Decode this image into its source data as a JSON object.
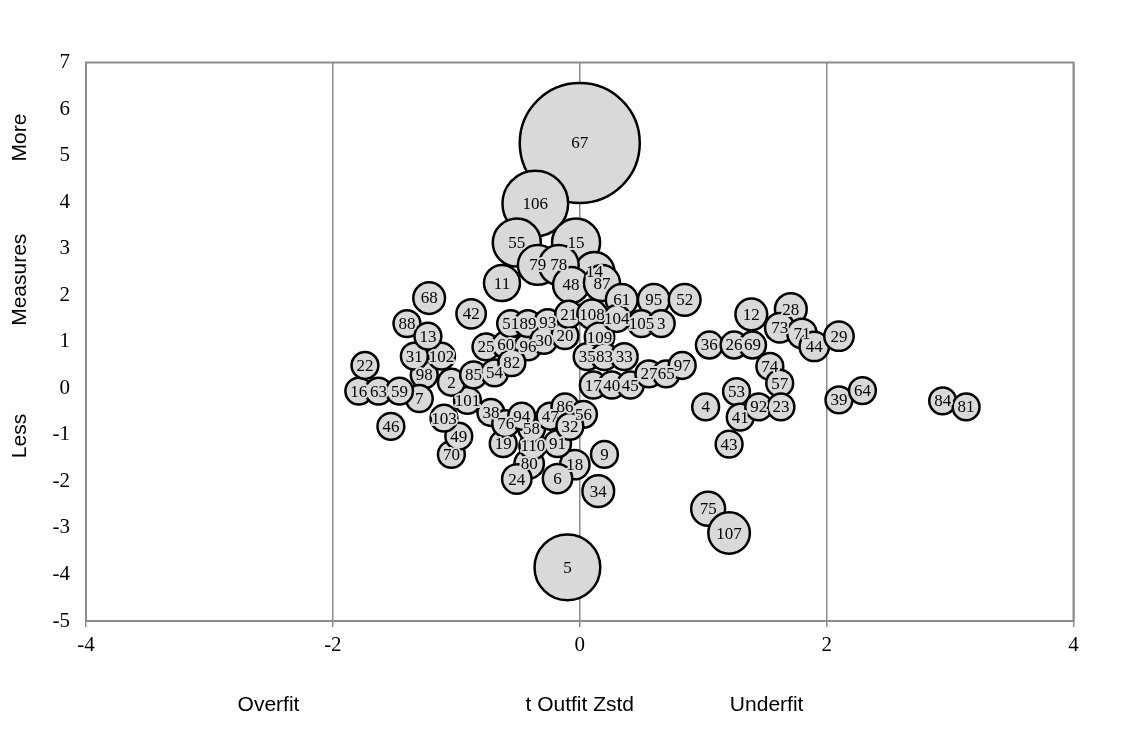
{
  "chart_data": {
    "type": "bubble",
    "xlabel": "t Outfit Zstd",
    "ylabel": "Measures",
    "annotations": [
      "Overfit",
      "Underfit",
      "More",
      "Less",
      {
        "text": "67",
        "x": 0,
        "y": 5.27
      },
      {
        "text": "106",
        "x": -0.36,
        "y": 3.97
      },
      {
        "text": "5",
        "x": -0.1,
        "y": -3.85
      },
      {
        "text": "55",
        "x": -0.51,
        "y": 3.13
      },
      {
        "text": "15",
        "x": -0.03,
        "y": 3.13
      },
      {
        "text": "14",
        "x": 0.12,
        "y": 2.5
      },
      {
        "text": "79",
        "x": -0.34,
        "y": 2.65
      },
      {
        "text": "78",
        "x": -0.17,
        "y": 2.65
      },
      {
        "text": "11",
        "x": -0.63,
        "y": 2.26
      },
      {
        "text": "48",
        "x": -0.07,
        "y": 2.22
      },
      {
        "text": "87",
        "x": 0.18,
        "y": 2.26
      },
      {
        "text": "68",
        "x": -1.22,
        "y": 1.94
      },
      {
        "text": "61",
        "x": 0.34,
        "y": 1.9
      },
      {
        "text": "95",
        "x": 0.6,
        "y": 1.9
      },
      {
        "text": "52",
        "x": 0.85,
        "y": 1.9
      },
      {
        "text": "42",
        "x": -0.88,
        "y": 1.6
      },
      {
        "text": "12",
        "x": 1.39,
        "y": 1.59
      },
      {
        "text": "28",
        "x": 1.71,
        "y": 1.7
      },
      {
        "text": "73",
        "x": 1.62,
        "y": 1.3
      },
      {
        "text": "71",
        "x": 1.8,
        "y": 1.18
      },
      {
        "text": "44",
        "x": 1.9,
        "y": 0.9
      },
      {
        "text": "29",
        "x": 2.1,
        "y": 1.12
      },
      {
        "text": "36",
        "x": 1.05,
        "y": 0.93
      },
      {
        "text": "26",
        "x": 1.25,
        "y": 0.93
      },
      {
        "text": "69",
        "x": 1.4,
        "y": 0.93
      },
      {
        "text": "74",
        "x": 1.54,
        "y": 0.47
      },
      {
        "text": "57",
        "x": 1.62,
        "y": 0.11
      },
      {
        "text": "53",
        "x": 1.27,
        "y": -0.07
      },
      {
        "text": "4",
        "x": 1.02,
        "y": -0.4
      },
      {
        "text": "41",
        "x": 1.3,
        "y": -0.62
      },
      {
        "text": "92",
        "x": 1.45,
        "y": -0.4
      },
      {
        "text": "23",
        "x": 1.63,
        "y": -0.4
      },
      {
        "text": "43",
        "x": 1.21,
        "y": -1.2
      },
      {
        "text": "39",
        "x": 2.1,
        "y": -0.25
      },
      {
        "text": "64",
        "x": 2.29,
        "y": -0.05
      },
      {
        "text": "84",
        "x": 2.94,
        "y": -0.27
      },
      {
        "text": "81",
        "x": 3.13,
        "y": -0.4
      },
      {
        "text": "75",
        "x": 1.04,
        "y": -2.59
      },
      {
        "text": "107",
        "x": 1.21,
        "y": -3.11
      },
      {
        "text": "34",
        "x": 0.15,
        "y": -2.21
      },
      {
        "text": "9",
        "x": 0.2,
        "y": -1.42
      },
      {
        "text": "18",
        "x": -0.04,
        "y": -1.64
      },
      {
        "text": "6",
        "x": -0.18,
        "y": -1.94
      },
      {
        "text": "80",
        "x": -0.41,
        "y": -1.62
      },
      {
        "text": "24",
        "x": -0.51,
        "y": -1.95
      },
      {
        "text": "70",
        "x": -1.04,
        "y": -1.42
      },
      {
        "text": "49",
        "x": -0.98,
        "y": -1.03
      },
      {
        "text": "19",
        "x": -0.62,
        "y": -1.19
      },
      {
        "text": "110",
        "x": -0.38,
        "y": -1.24
      },
      {
        "text": "91",
        "x": -0.18,
        "y": -1.19
      },
      {
        "text": "38",
        "x": -0.72,
        "y": -0.52
      },
      {
        "text": "76",
        "x": -0.6,
        "y": -0.76
      },
      {
        "text": "58",
        "x": -0.39,
        "y": -0.86
      },
      {
        "text": "94",
        "x": -0.47,
        "y": -0.6
      },
      {
        "text": "47",
        "x": -0.24,
        "y": -0.6
      },
      {
        "text": "86",
        "x": -0.12,
        "y": -0.4
      },
      {
        "text": "56",
        "x": 0.03,
        "y": -0.56
      },
      {
        "text": "32",
        "x": -0.08,
        "y": -0.82
      },
      {
        "text": "101",
        "x": -0.91,
        "y": -0.26
      },
      {
        "text": "103",
        "x": -1.1,
        "y": -0.64
      },
      {
        "text": "2",
        "x": -1.04,
        "y": 0.13
      },
      {
        "text": "85",
        "x": -0.86,
        "y": 0.29
      },
      {
        "text": "54",
        "x": -0.69,
        "y": 0.33
      },
      {
        "text": "98",
        "x": -1.26,
        "y": 0.29
      },
      {
        "text": "7",
        "x": -1.3,
        "y": -0.22
      },
      {
        "text": "16",
        "x": -1.79,
        "y": -0.06
      },
      {
        "text": "63",
        "x": -1.63,
        "y": -0.06
      },
      {
        "text": "59",
        "x": -1.46,
        "y": -0.06
      },
      {
        "text": "46",
        "x": -1.53,
        "y": -0.82
      },
      {
        "text": "22",
        "x": -1.74,
        "y": 0.49
      },
      {
        "text": "31",
        "x": -1.34,
        "y": 0.69
      },
      {
        "text": "102",
        "x": -1.12,
        "y": 0.69
      },
      {
        "text": "88",
        "x": -1.4,
        "y": 1.39
      },
      {
        "text": "13",
        "x": -1.23,
        "y": 1.12
      },
      {
        "text": "25",
        "x": -0.76,
        "y": 0.89
      },
      {
        "text": "60",
        "x": -0.6,
        "y": 0.93
      },
      {
        "text": "96",
        "x": -0.42,
        "y": 0.89
      },
      {
        "text": "82",
        "x": -0.55,
        "y": 0.55
      },
      {
        "text": "51",
        "x": -0.56,
        "y": 1.39
      },
      {
        "text": "89",
        "x": -0.42,
        "y": 1.39
      },
      {
        "text": "93",
        "x": -0.26,
        "y": 1.41
      },
      {
        "text": "30",
        "x": -0.29,
        "y": 1.03
      },
      {
        "text": "20",
        "x": -0.12,
        "y": 1.13
      },
      {
        "text": "21",
        "x": -0.09,
        "y": 1.59
      },
      {
        "text": "108",
        "x": 0.1,
        "y": 1.59
      },
      {
        "text": "109",
        "x": 0.16,
        "y": 1.1
      },
      {
        "text": "35",
        "x": 0.06,
        "y": 0.68
      },
      {
        "text": "83",
        "x": 0.2,
        "y": 0.68
      },
      {
        "text": "33",
        "x": 0.36,
        "y": 0.68
      },
      {
        "text": "104",
        "x": 0.3,
        "y": 1.5
      },
      {
        "text": "105",
        "x": 0.5,
        "y": 1.39
      },
      {
        "text": "3",
        "x": 0.66,
        "y": 1.39
      },
      {
        "text": "17",
        "x": 0.11,
        "y": 0.07
      },
      {
        "text": "40",
        "x": 0.26,
        "y": 0.07
      },
      {
        "text": "45",
        "x": 0.41,
        "y": 0.07
      },
      {
        "text": "27",
        "x": 0.56,
        "y": 0.31
      },
      {
        "text": "65",
        "x": 0.7,
        "y": 0.31
      },
      {
        "text": "97",
        "x": 0.83,
        "y": 0.49
      }
    ],
    "color": "#d9d9d9",
    "grid": "x",
    "xlim": [
      -4,
      4
    ],
    "xticks": [
      -4,
      -2,
      0,
      2,
      4
    ],
    "ylim": [
      -5,
      7
    ],
    "yticks": [
      -5,
      -4,
      -3,
      -2,
      -1,
      0,
      1,
      2,
      3,
      4,
      5,
      6,
      7
    ],
    "x": [
      0,
      -0.36,
      -0.1,
      -0.51,
      -0.03,
      0.12,
      -0.34,
      -0.17,
      -0.63,
      -0.07,
      0.18,
      -1.22,
      0.34,
      0.6,
      0.85,
      -0.88,
      1.39,
      1.71,
      1.62,
      1.8,
      1.9,
      2.1,
      1.05,
      1.25,
      1.4,
      1.54,
      1.62,
      1.27,
      1.02,
      1.3,
      1.45,
      1.63,
      1.21,
      2.1,
      2.29,
      2.94,
      3.13,
      1.04,
      1.21,
      0.15,
      0.2,
      -0.04,
      -0.18,
      -0.41,
      -0.51,
      -1.04,
      -0.98,
      -0.62,
      -0.38,
      -0.18,
      -0.72,
      -0.6,
      -0.39,
      -0.47,
      -0.24,
      -0.12,
      0.03,
      -0.08,
      -0.91,
      -1.1,
      -1.04,
      -0.86,
      -0.69,
      -1.26,
      -1.3,
      -1.79,
      -1.63,
      -1.46,
      -1.53,
      -1.74,
      -1.34,
      -1.12,
      -1.4,
      -1.23,
      -0.76,
      -0.6,
      -0.42,
      -0.55,
      -0.56,
      -0.42,
      -0.26,
      -0.29,
      -0.12,
      -0.09,
      0.1,
      0.16,
      0.06,
      0.2,
      0.36,
      0.3,
      0.5,
      0.66,
      0.11,
      0.26,
      0.41,
      0.56,
      0.7,
      0.83
    ],
    "values": [
      5.27,
      3.97,
      -3.85,
      3.13,
      3.13,
      2.5,
      2.65,
      2.65,
      2.26,
      2.22,
      2.26,
      1.94,
      1.9,
      1.9,
      1.9,
      1.6,
      1.59,
      1.7,
      1.3,
      1.18,
      0.9,
      1.12,
      0.93,
      0.93,
      0.93,
      0.47,
      0.11,
      -0.07,
      -0.4,
      -0.62,
      -0.4,
      -0.4,
      -1.2,
      -0.25,
      -0.05,
      -0.27,
      -0.4,
      -2.59,
      -3.11,
      -2.21,
      -1.42,
      -1.64,
      -1.94,
      -1.62,
      -1.95,
      -1.42,
      -1.03,
      -1.19,
      -1.24,
      -1.19,
      -0.52,
      -0.76,
      -0.86,
      -0.6,
      -0.6,
      -0.4,
      -0.56,
      -0.82,
      -0.26,
      -0.64,
      0.13,
      0.29,
      0.33,
      0.29,
      -0.22,
      -0.06,
      -0.06,
      -0.06,
      -0.82,
      0.49,
      0.69,
      0.69,
      1.39,
      1.12,
      0.89,
      0.93,
      0.89,
      0.55,
      1.39,
      1.39,
      1.41,
      1.03,
      1.13,
      1.59,
      1.59,
      1.1,
      0.68,
      0.68,
      0.68,
      1.5,
      1.39,
      1.39,
      0.07,
      0.07,
      0.07,
      0.31,
      0.31,
      0.49
    ],
    "sizes": [
      1,
      0.3,
      0.3,
      0.16,
      0.16,
      0.11,
      0.11,
      0.11,
      0.09,
      0.09,
      0.09,
      0.07,
      0.07,
      0.07,
      0.07,
      0.06,
      0.07,
      0.07,
      0.06,
      0.06,
      0.06,
      0.06,
      0.05,
      0.05,
      0.05,
      0.05,
      0.05,
      0.05,
      0.05,
      0.05,
      0.05,
      0.05,
      0.05,
      0.05,
      0.05,
      0.05,
      0.05,
      0.08,
      0.12,
      0.07,
      0.05,
      0.06,
      0.06,
      0.06,
      0.06,
      0.05,
      0.05,
      0.05,
      0.05,
      0.05,
      0.05,
      0.05,
      0.05,
      0.05,
      0.05,
      0.05,
      0.05,
      0.05,
      0.05,
      0.05,
      0.05,
      0.05,
      0.05,
      0.05,
      0.05,
      0.05,
      0.05,
      0.05,
      0.05,
      0.05,
      0.05,
      0.05,
      0.05,
      0.05,
      0.05,
      0.05,
      0.05,
      0.05,
      0.05,
      0.05,
      0.05,
      0.05,
      0.05,
      0.05,
      0.06,
      0.06,
      0.05,
      0.05,
      0.05,
      0.05,
      0.05,
      0.05,
      0.05,
      0.05,
      0.05,
      0.05,
      0.05,
      0.05
    ]
  }
}
